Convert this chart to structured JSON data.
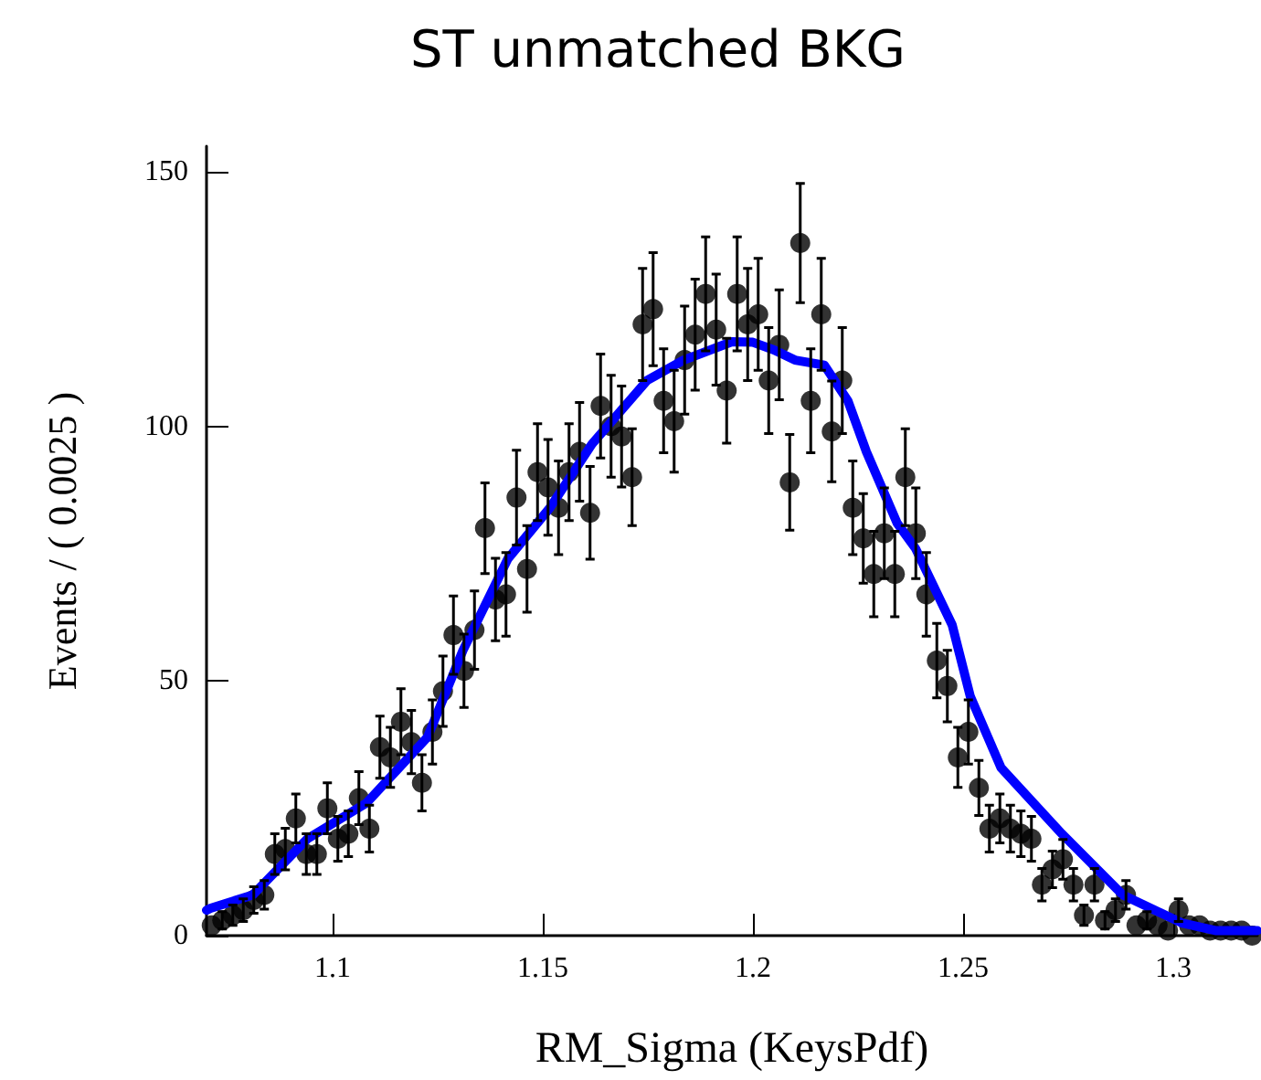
{
  "chart_data": {
    "type": "scatter",
    "title": "ST unmatched BKG",
    "xlabel": "RM_Sigma (KeysPdf)",
    "ylabel": "Events / ( 0.0025 )",
    "xlim": [
      1.07,
      1.32
    ],
    "xticks": [
      1.1,
      1.15,
      1.2,
      1.25,
      1.3
    ],
    "ylim": [
      0,
      155
    ],
    "yticks": [
      0,
      50,
      100,
      150
    ],
    "grid": false,
    "series": [
      {
        "color": "#000000",
        "marker": "circle",
        "x": [
          1.07125,
          1.07375,
          1.07625,
          1.07875,
          1.08125,
          1.08375,
          1.08625,
          1.08875,
          1.09125,
          1.09375,
          1.09625,
          1.09875,
          1.10125,
          1.10375,
          1.10625,
          1.10875,
          1.11125,
          1.11375,
          1.11625,
          1.11875,
          1.12125,
          1.12375,
          1.12625,
          1.12875,
          1.13125,
          1.13375,
          1.13625,
          1.13875,
          1.14125,
          1.14375,
          1.14625,
          1.14875,
          1.15125,
          1.15375,
          1.15625,
          1.15875,
          1.16125,
          1.16375,
          1.16625,
          1.16875,
          1.17125,
          1.17375,
          1.17625,
          1.17875,
          1.18125,
          1.18375,
          1.18625,
          1.18875,
          1.19125,
          1.19375,
          1.19625,
          1.19875,
          1.20125,
          1.20375,
          1.20625,
          1.20875,
          1.21125,
          1.21375,
          1.21625,
          1.21875,
          1.22125,
          1.22375,
          1.22625,
          1.22875,
          1.23125,
          1.23375,
          1.23625,
          1.23875,
          1.24125,
          1.24375,
          1.24625,
          1.24875,
          1.25125,
          1.25375,
          1.25625,
          1.25875,
          1.26125,
          1.26375,
          1.26625,
          1.26875,
          1.27125,
          1.27375,
          1.27625,
          1.27875,
          1.28125,
          1.28375,
          1.28625,
          1.28875,
          1.29125,
          1.29375,
          1.29625,
          1.29875,
          1.30125,
          1.30375,
          1.30625,
          1.30875,
          1.31125,
          1.31375,
          1.31625,
          1.31875
        ],
        "values": [
          2,
          3,
          4,
          5,
          7,
          8,
          16,
          17,
          23,
          16,
          16,
          25,
          19,
          20,
          27,
          21,
          37,
          35,
          42,
          38,
          30,
          40,
          48,
          59,
          52,
          60,
          80,
          66,
          67,
          86,
          72,
          91,
          88,
          84,
          91,
          95,
          83,
          104,
          100,
          98,
          90,
          120,
          123,
          105,
          101,
          113,
          118,
          126,
          119,
          107,
          126,
          120,
          122,
          109,
          116,
          89,
          136,
          105,
          122,
          99,
          109,
          84,
          78,
          71,
          79,
          71,
          90,
          79,
          67,
          54,
          49,
          35,
          40,
          29,
          21,
          23,
          21,
          20,
          19,
          10,
          13,
          15,
          10,
          4,
          10,
          3,
          5,
          8,
          2,
          3,
          2,
          1,
          5,
          2,
          2,
          1,
          1,
          1,
          1,
          0
        ],
        "errors": [
          null,
          1.7,
          2,
          2.2,
          2.6,
          2.8,
          4,
          4.1,
          4.8,
          4,
          4,
          5,
          4.4,
          4.5,
          5.2,
          4.6,
          6.1,
          5.9,
          6.5,
          6.2,
          5.5,
          6.3,
          6.9,
          7.7,
          7.2,
          7.7,
          8.9,
          8.1,
          8.2,
          9.3,
          8.5,
          9.5,
          9.4,
          9.2,
          9.5,
          9.7,
          9.1,
          10.2,
          10,
          9.9,
          9.5,
          11,
          11.1,
          10.2,
          10,
          10.6,
          10.9,
          11.2,
          10.9,
          10.3,
          11.2,
          11,
          11,
          10.4,
          10.8,
          9.4,
          11.7,
          10.2,
          11,
          9.9,
          10.4,
          9.2,
          8.8,
          8.4,
          8.9,
          8.4,
          9.5,
          8.9,
          8.2,
          7.3,
          7,
          5.9,
          6.3,
          5.4,
          4.6,
          4.8,
          4.6,
          4.5,
          4.4,
          3.2,
          3.6,
          3.9,
          3.2,
          2,
          3.2,
          1.7,
          2.2,
          2.8,
          null,
          1.7,
          null,
          null,
          2.2,
          null,
          null,
          null,
          null,
          null,
          null,
          null
        ]
      },
      {
        "type": "line",
        "color": "#0000ff",
        "marker": "none",
        "line_style": "solid",
        "x": [
          1.07,
          1.071,
          1.081,
          1.094,
          1.108,
          1.1226,
          1.131,
          1.1417,
          1.1517,
          1.1617,
          1.1748,
          1.1835,
          1.195,
          1.2,
          1.205,
          1.21,
          1.217,
          1.2226,
          1.227,
          1.2343,
          1.2387,
          1.2474,
          1.2517,
          1.259,
          1.2735,
          1.288,
          1.302,
          1.31,
          1.32
        ],
        "values": [
          5,
          5.4,
          8,
          19,
          26,
          39,
          56,
          74,
          84,
          96.5,
          109,
          113,
          116.6,
          116.5,
          115,
          113,
          112,
          105,
          95,
          81,
          76,
          61,
          47,
          33,
          20,
          8,
          2.5,
          1,
          1
        ]
      }
    ]
  }
}
